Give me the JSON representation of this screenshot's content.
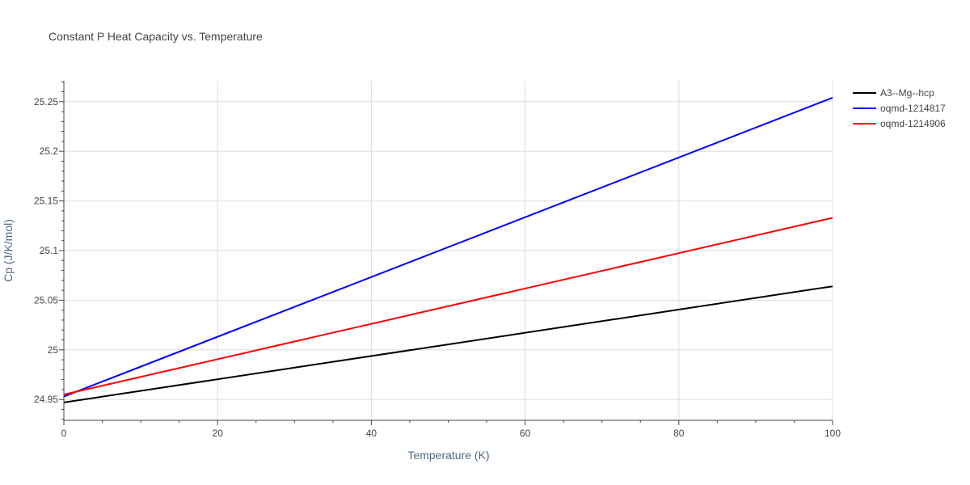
{
  "chart_data": {
    "type": "line",
    "title": "Constant P Heat Capacity vs. Temperature",
    "xlabel": "Temperature (K)",
    "ylabel": "Cp (J/K/mol)",
    "xlim": [
      0,
      100
    ],
    "ylim": [
      24.929,
      25.271
    ],
    "x_ticks": [
      0,
      20,
      40,
      60,
      80,
      100
    ],
    "x_tick_labels": [
      "0",
      "20",
      "40",
      "60",
      "80",
      "100"
    ],
    "y_ticks": [
      24.95,
      25.0,
      25.05,
      25.1,
      25.15,
      25.2,
      25.25
    ],
    "y_tick_labels": [
      "24.95",
      "25",
      "25.05",
      "25.1",
      "25.15",
      "25.2",
      "25.25"
    ],
    "grid": true,
    "legend_position": "right",
    "series": [
      {
        "name": "A3--Mg--hcp",
        "color": "#000000",
        "x": [
          0,
          100
        ],
        "y": [
          24.947,
          25.064
        ]
      },
      {
        "name": "oqmd-1214817",
        "color": "#0000ff",
        "x": [
          0,
          100
        ],
        "y": [
          24.953,
          25.254
        ]
      },
      {
        "name": "oqmd-1214906",
        "color": "#ff0000",
        "x": [
          0,
          100
        ],
        "y": [
          24.955,
          25.133
        ]
      }
    ]
  }
}
